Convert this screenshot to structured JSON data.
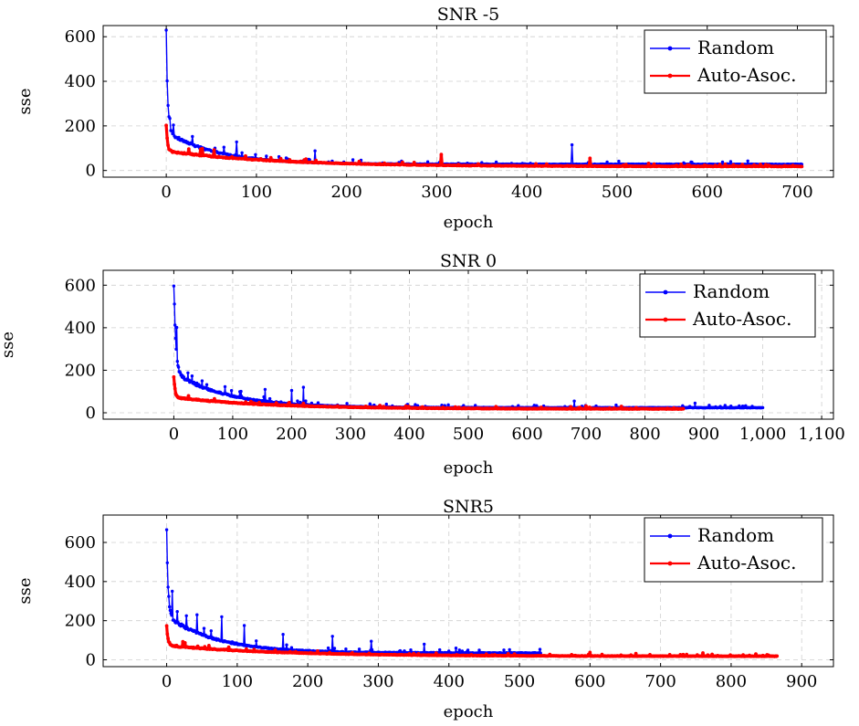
{
  "chart_data": [
    {
      "type": "line",
      "title": "SNR -5",
      "xlabel": "epoch",
      "ylabel": "sse",
      "xlim": [
        -70,
        740
      ],
      "ylim": [
        -30,
        650
      ],
      "xticks": [
        0,
        100,
        200,
        300,
        400,
        500,
        600,
        700
      ],
      "xtick_labels": [
        "0",
        "100",
        "200",
        "300",
        "400",
        "500",
        "600",
        "700"
      ],
      "yticks": [
        0,
        200,
        400,
        600
      ],
      "ytick_labels": [
        "0",
        "200",
        "400",
        "600"
      ],
      "grid": true,
      "legend_position": "top-right",
      "series": [
        {
          "name": "Random",
          "color": "#0000ff",
          "curve": {
            "end_epoch": 705,
            "start": 600,
            "asymptote": 28,
            "k1": 0.78,
            "k2": 0.26,
            "t1": 1.6,
            "t2": 55
          },
          "spikes": [
            [
              78,
              128
            ],
            [
              165,
              88
            ],
            [
              305,
              65
            ],
            [
              450,
              115
            ],
            [
              470,
              52
            ]
          ]
        },
        {
          "name": "Auto-Asoc.",
          "color": "#ff0000",
          "curve": {
            "end_epoch": 705,
            "start": 200,
            "asymptote": 18,
            "k1": 0.62,
            "k2": 0.38,
            "t1": 1.4,
            "t2": 120
          },
          "spikes": [
            [
              43,
              68
            ],
            [
              305,
              72
            ],
            [
              470,
              55
            ],
            [
              535,
              32
            ],
            [
              620,
              28
            ]
          ]
        }
      ]
    },
    {
      "type": "line",
      "title": "SNR 0",
      "xlabel": "epoch",
      "ylabel": "sse",
      "xlim": [
        -120,
        1120
      ],
      "ylim": [
        -30,
        670
      ],
      "xticks": [
        0,
        100,
        200,
        300,
        400,
        500,
        600,
        700,
        800,
        900,
        1000,
        1100
      ],
      "xtick_labels": [
        "0",
        "100",
        "200",
        "300",
        "400",
        "500",
        "600",
        "700",
        "800",
        "900",
        "1,000",
        "1,100"
      ],
      "yticks": [
        0,
        200,
        400,
        600
      ],
      "ytick_labels": [
        "0",
        "200",
        "400",
        "600"
      ],
      "grid": true,
      "legend_position": "top-right",
      "series": [
        {
          "name": "Random",
          "color": "#0000ff",
          "curve": {
            "end_epoch": 1000,
            "start": 620,
            "asymptote": 24,
            "k1": 0.72,
            "k2": 0.28,
            "t1": 3,
            "t2": 90
          },
          "spikes": [
            [
              155,
              110
            ],
            [
              200,
              105
            ],
            [
              220,
              120
            ],
            [
              680,
              55
            ],
            [
              885,
              45
            ]
          ]
        },
        {
          "name": "Auto-Asoc.",
          "color": "#ff0000",
          "curve": {
            "end_epoch": 865,
            "start": 175,
            "asymptote": 18,
            "k1": 0.65,
            "k2": 0.35,
            "t1": 2,
            "t2": 160
          },
          "spikes": [
            [
              700,
              32
            ],
            [
              760,
              30
            ]
          ]
        }
      ]
    },
    {
      "type": "line",
      "title": "SNR5",
      "xlabel": "epoch",
      "ylabel": "sse",
      "xlim": [
        -90,
        945
      ],
      "ylim": [
        -35,
        740
      ],
      "xticks": [
        0,
        100,
        200,
        300,
        400,
        500,
        600,
        700,
        800,
        900
      ],
      "xtick_labels": [
        "0",
        "100",
        "200",
        "300",
        "400",
        "500",
        "600",
        "700",
        "800",
        "900"
      ],
      "yticks": [
        0,
        200,
        400,
        600
      ],
      "ytick_labels": [
        "0",
        "200",
        "400",
        "600"
      ],
      "grid": true,
      "legend_position": "top-right",
      "series": [
        {
          "name": "Random",
          "color": "#0000ff",
          "curve": {
            "end_epoch": 530,
            "start": 670,
            "asymptote": 35,
            "k1": 0.7,
            "k2": 0.3,
            "t1": 2,
            "t2": 70
          },
          "spikes": [
            [
              8,
              350
            ],
            [
              28,
              225
            ],
            [
              43,
              230
            ],
            [
              78,
              220
            ],
            [
              110,
              175
            ],
            [
              165,
              130
            ],
            [
              235,
              120
            ],
            [
              290,
              95
            ],
            [
              365,
              80
            ],
            [
              410,
              60
            ]
          ]
        },
        {
          "name": "Auto-Asoc.",
          "color": "#ff0000",
          "curve": {
            "end_epoch": 865,
            "start": 175,
            "asymptote": 18,
            "k1": 0.65,
            "k2": 0.35,
            "t1": 2,
            "t2": 160
          },
          "spikes": [
            [
              600,
              38
            ],
            [
              665,
              32
            ],
            [
              760,
              35
            ],
            [
              835,
              30
            ]
          ]
        }
      ]
    }
  ]
}
